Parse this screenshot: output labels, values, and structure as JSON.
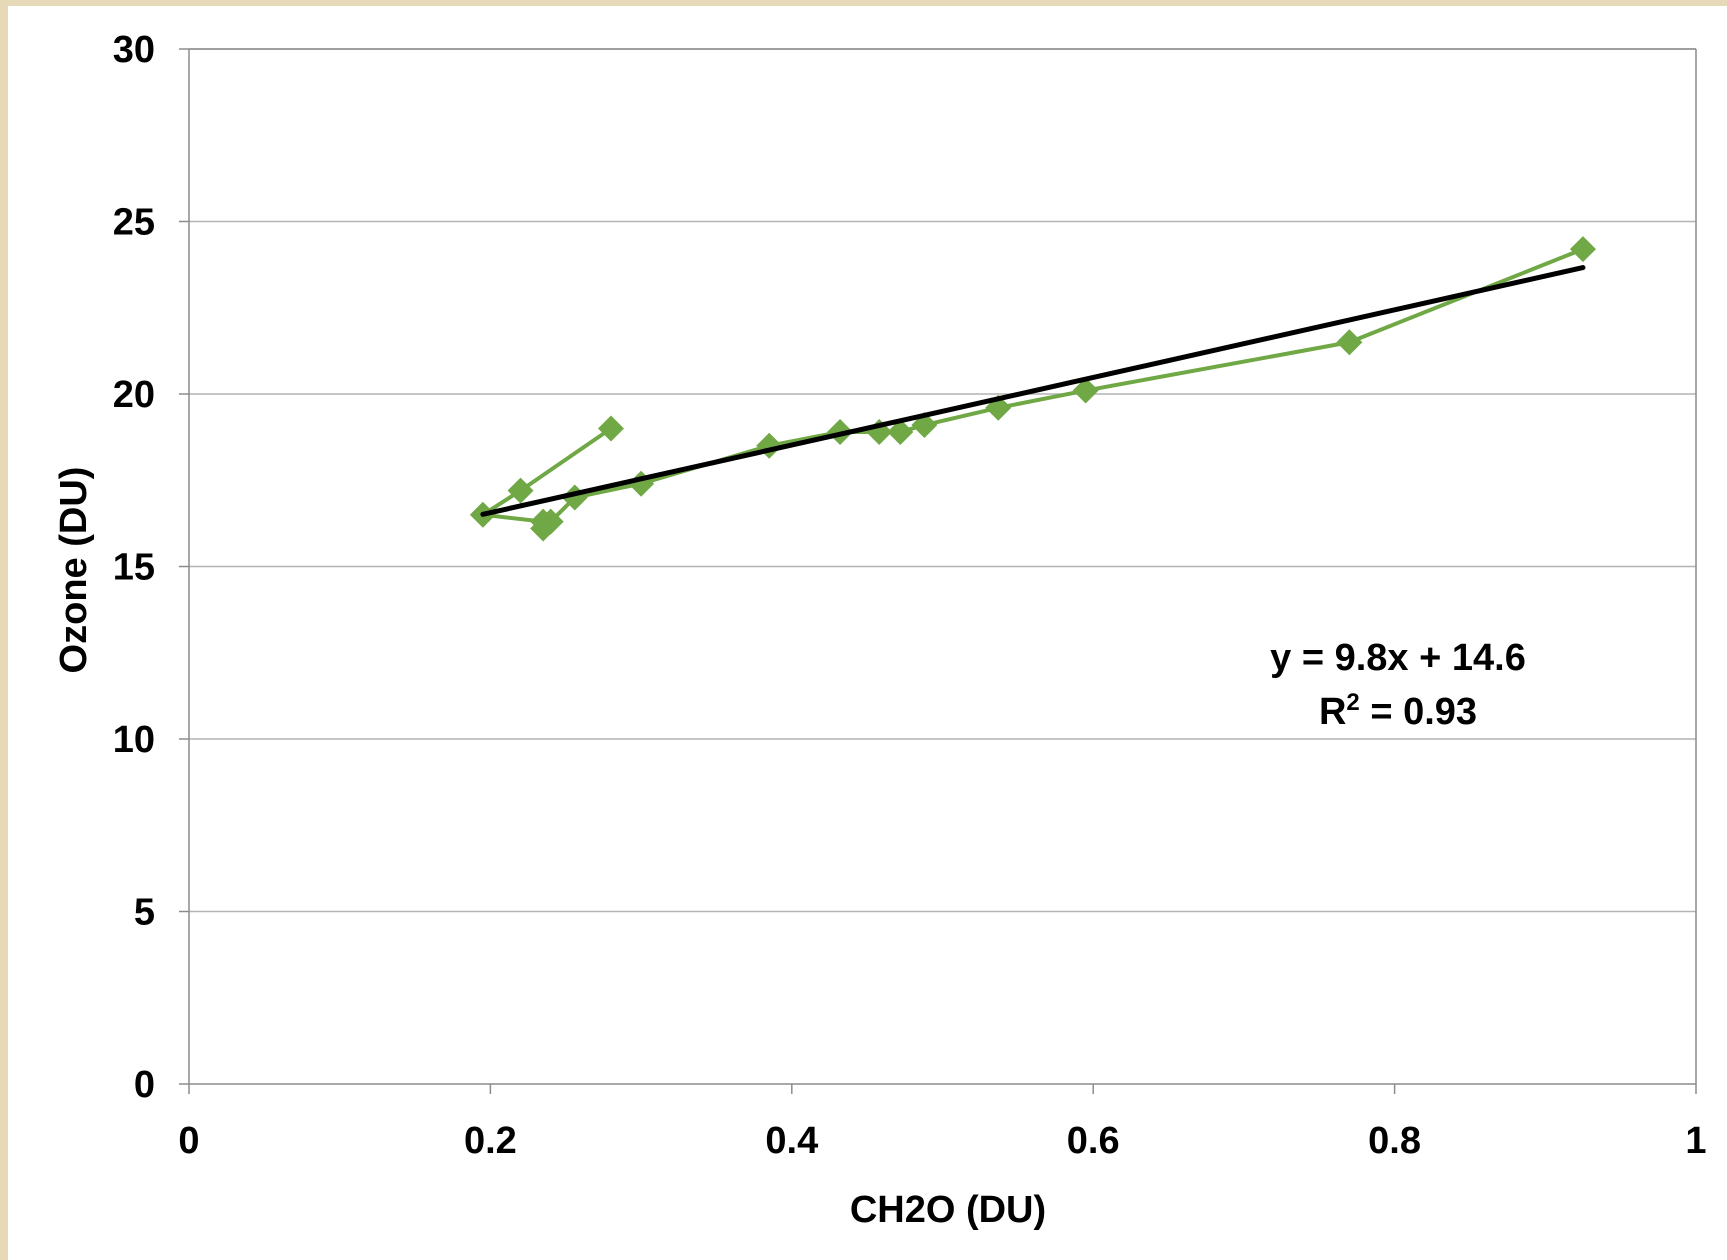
{
  "chart_data": {
    "type": "scatter",
    "xlabel": "CH2O (DU)",
    "ylabel": "Ozone (DU)",
    "xlim": [
      0,
      1
    ],
    "ylim": [
      0,
      30
    ],
    "x_ticks": [
      "0",
      "0.2",
      "0.4",
      "0.6",
      "0.8",
      "1"
    ],
    "y_ticks": [
      "0",
      "5",
      "10",
      "15",
      "20",
      "25",
      "30"
    ],
    "grid": "horizontal",
    "colors": {
      "series": "#70a845",
      "trendline": "#000000",
      "grid": "#b4b4b4"
    },
    "series": [
      {
        "connected": true,
        "points": [
          [
            0.28,
            19.0
          ],
          [
            0.22,
            17.2
          ],
          [
            0.195,
            16.5
          ],
          [
            0.235,
            16.3
          ],
          [
            0.235,
            16.1
          ],
          [
            0.24,
            16.3
          ],
          [
            0.256,
            17.0
          ],
          [
            0.3,
            17.4
          ],
          [
            0.385,
            18.5
          ],
          [
            0.432,
            18.9
          ],
          [
            0.458,
            18.9
          ],
          [
            0.472,
            18.9
          ],
          [
            0.488,
            19.1
          ],
          [
            0.537,
            19.6
          ],
          [
            0.595,
            20.1
          ],
          [
            0.77,
            21.5
          ],
          [
            0.925,
            24.2
          ]
        ]
      }
    ],
    "trendline": {
      "slope": 9.8,
      "intercept": 14.6,
      "x_range": [
        0.195,
        0.925
      ],
      "equation": "y = 9.8x + 14.6",
      "r2_prefix": "R",
      "r2_sup": "2",
      "r2_value": " = 0.93"
    }
  }
}
